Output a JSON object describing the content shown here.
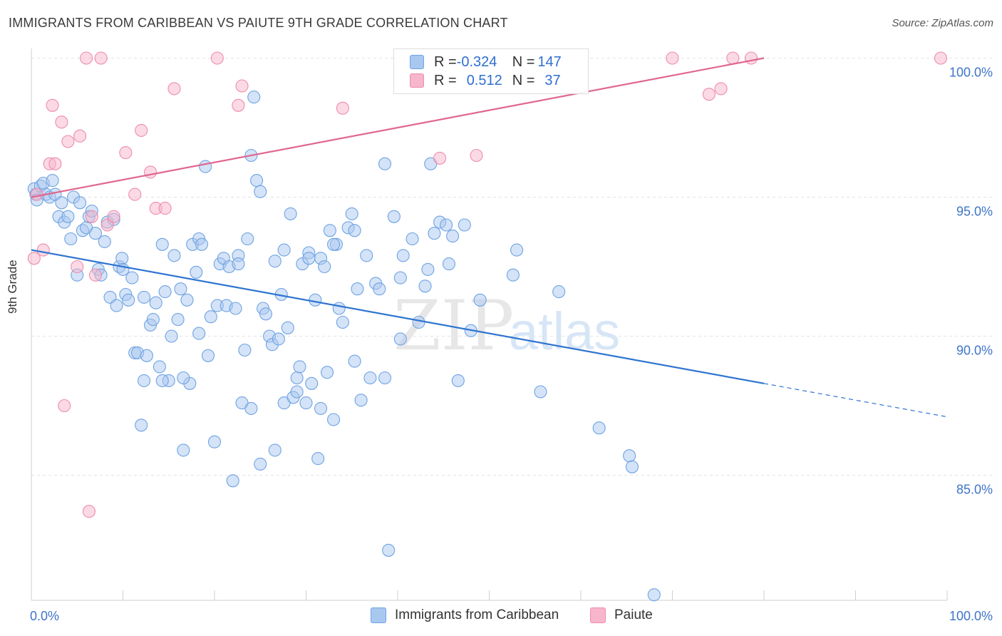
{
  "title": "IMMIGRANTS FROM CARIBBEAN VS PAIUTE 9TH GRADE CORRELATION CHART",
  "source": "Source: ZipAtlas.com",
  "watermark": {
    "zip": "ZIP",
    "atlas": "atlas"
  },
  "legend_top": {
    "rows": [
      {
        "r_label": "R = ",
        "r_value": "-0.324",
        "n_label": "N = ",
        "n_value": "147",
        "color": "#a9c8f0"
      },
      {
        "r_label": "R = ",
        "r_value": "0.512",
        "n_label": "N = ",
        "n_value": "37",
        "color": "#f7b6cb"
      }
    ]
  },
  "chart_data": {
    "type": "scatter",
    "title": "IMMIGRANTS FROM CARIBBEAN VS PAIUTE 9TH GRADE CORRELATION CHART",
    "xlabel": "",
    "ylabel": "9th Grade",
    "xlim": [
      0,
      100
    ],
    "ylim": [
      80.5,
      100.5
    ],
    "x_tick_labels": [
      "0.0%",
      "100.0%"
    ],
    "y_ticks": [
      85,
      90,
      95,
      100
    ],
    "y_tick_labels": [
      "85.0%",
      "90.0%",
      "95.0%",
      "100.0%"
    ],
    "grid": true,
    "legend_position": "bottom",
    "series": [
      {
        "name": "Immigrants from Caribbean",
        "color": "#6fa3e3",
        "fill": "#a9c8f0",
        "trend": {
          "x0": 0,
          "y0": 93.1,
          "x1": 80,
          "y1": 88.3,
          "dash_x1": 100,
          "dash_y1": 87.1
        },
        "points": [
          [
            0.3,
            95.3
          ],
          [
            0.5,
            95.1
          ],
          [
            0.6,
            94.9
          ],
          [
            1.0,
            95.4
          ],
          [
            1.3,
            95.5
          ],
          [
            1.6,
            95.1
          ],
          [
            2.0,
            95.0
          ],
          [
            2.3,
            95.6
          ],
          [
            2.6,
            95.1
          ],
          [
            3.0,
            94.3
          ],
          [
            3.3,
            94.8
          ],
          [
            3.6,
            94.1
          ],
          [
            4.0,
            94.3
          ],
          [
            4.3,
            93.5
          ],
          [
            4.6,
            95.0
          ],
          [
            5.0,
            92.2
          ],
          [
            5.3,
            94.8
          ],
          [
            5.6,
            93.8
          ],
          [
            6.0,
            93.9
          ],
          [
            6.3,
            94.3
          ],
          [
            6.6,
            94.5
          ],
          [
            7.0,
            93.7
          ],
          [
            7.3,
            92.4
          ],
          [
            7.6,
            92.2
          ],
          [
            8.0,
            93.4
          ],
          [
            8.3,
            94.1
          ],
          [
            8.6,
            91.4
          ],
          [
            9.0,
            94.2
          ],
          [
            9.3,
            91.1
          ],
          [
            9.6,
            92.5
          ],
          [
            9.9,
            92.8
          ],
          [
            10.3,
            91.5
          ],
          [
            10.6,
            91.3
          ],
          [
            11.0,
            92.1
          ],
          [
            11.3,
            89.4
          ],
          [
            11.6,
            89.4
          ],
          [
            12.0,
            86.8
          ],
          [
            12.3,
            88.4
          ],
          [
            12.6,
            89.3
          ],
          [
            13.0,
            90.4
          ],
          [
            13.3,
            90.6
          ],
          [
            13.6,
            91.2
          ],
          [
            14.0,
            88.9
          ],
          [
            14.3,
            93.3
          ],
          [
            14.6,
            91.6
          ],
          [
            15.0,
            88.4
          ],
          [
            15.3,
            90.0
          ],
          [
            15.6,
            92.9
          ],
          [
            16.0,
            90.6
          ],
          [
            16.3,
            91.7
          ],
          [
            16.6,
            85.9
          ],
          [
            17.0,
            91.3
          ],
          [
            17.3,
            88.3
          ],
          [
            17.6,
            93.3
          ],
          [
            18.0,
            92.3
          ],
          [
            18.3,
            93.5
          ],
          [
            18.6,
            93.3
          ],
          [
            19.0,
            96.1
          ],
          [
            19.3,
            89.3
          ],
          [
            19.6,
            90.7
          ],
          [
            20.0,
            86.2
          ],
          [
            20.3,
            91.1
          ],
          [
            20.6,
            92.6
          ],
          [
            21.0,
            92.8
          ],
          [
            21.3,
            91.1
          ],
          [
            21.6,
            92.5
          ],
          [
            22.0,
            84.8
          ],
          [
            22.3,
            91.0
          ],
          [
            22.6,
            92.9
          ],
          [
            23.0,
            87.6
          ],
          [
            23.3,
            89.5
          ],
          [
            23.6,
            93.5
          ],
          [
            24.0,
            87.4
          ],
          [
            24.3,
            98.6
          ],
          [
            24.6,
            95.6
          ],
          [
            25.0,
            85.4
          ],
          [
            25.3,
            91.0
          ],
          [
            25.6,
            90.8
          ],
          [
            26.0,
            90.0
          ],
          [
            26.3,
            89.7
          ],
          [
            26.6,
            92.7
          ],
          [
            27.0,
            89.9
          ],
          [
            27.3,
            91.5
          ],
          [
            27.6,
            87.6
          ],
          [
            28.0,
            90.3
          ],
          [
            28.3,
            94.4
          ],
          [
            28.6,
            87.8
          ],
          [
            29.0,
            88.5
          ],
          [
            29.3,
            88.9
          ],
          [
            29.6,
            92.6
          ],
          [
            30.0,
            87.6
          ],
          [
            30.3,
            93.0
          ],
          [
            30.6,
            88.3
          ],
          [
            31.0,
            91.3
          ],
          [
            31.3,
            85.6
          ],
          [
            31.6,
            92.8
          ],
          [
            32.0,
            92.5
          ],
          [
            32.3,
            88.7
          ],
          [
            32.6,
            93.8
          ],
          [
            33.0,
            87.0
          ],
          [
            33.3,
            93.3
          ],
          [
            33.6,
            91.0
          ],
          [
            34.0,
            90.5
          ],
          [
            34.6,
            93.9
          ],
          [
            35.0,
            94.4
          ],
          [
            35.3,
            89.1
          ],
          [
            35.6,
            91.7
          ],
          [
            36.0,
            87.7
          ],
          [
            36.6,
            92.9
          ],
          [
            37.0,
            88.5
          ],
          [
            37.6,
            91.9
          ],
          [
            38.0,
            91.7
          ],
          [
            38.6,
            96.2
          ],
          [
            39.0,
            82.3
          ],
          [
            39.6,
            94.3
          ],
          [
            40.3,
            92.1
          ],
          [
            40.6,
            92.9
          ],
          [
            41.6,
            93.5
          ],
          [
            42.3,
            90.5
          ],
          [
            43.0,
            91.8
          ],
          [
            43.3,
            92.4
          ],
          [
            44.0,
            93.7
          ],
          [
            44.6,
            94.1
          ],
          [
            45.6,
            92.6
          ],
          [
            46.0,
            93.6
          ],
          [
            46.6,
            88.4
          ],
          [
            47.3,
            94.0
          ],
          [
            48.0,
            90.2
          ],
          [
            49.0,
            91.3
          ],
          [
            50.0,
            99.9
          ],
          [
            52.6,
            92.2
          ],
          [
            53.0,
            93.1
          ],
          [
            55.6,
            88.0
          ],
          [
            57.6,
            91.6
          ],
          [
            62.0,
            86.7
          ],
          [
            65.3,
            85.7
          ],
          [
            65.6,
            85.3
          ],
          [
            68.0,
            80.7
          ],
          [
            22.6,
            92.6
          ],
          [
            25.0,
            95.2
          ],
          [
            24.0,
            96.5
          ],
          [
            27.6,
            93.1
          ],
          [
            30.3,
            92.8
          ],
          [
            33.0,
            93.3
          ],
          [
            35.3,
            93.8
          ],
          [
            10.0,
            92.4
          ],
          [
            14.3,
            88.4
          ],
          [
            18.3,
            90.1
          ],
          [
            38.6,
            88.5
          ],
          [
            40.3,
            89.9
          ],
          [
            43.6,
            96.2
          ],
          [
            45.3,
            94.0
          ],
          [
            16.6,
            88.5
          ],
          [
            12.3,
            91.4
          ],
          [
            26.6,
            85.9
          ],
          [
            29.0,
            88.0
          ],
          [
            31.6,
            87.4
          ]
        ]
      },
      {
        "name": "Paiute",
        "color": "#ee8cab",
        "fill": "#f7b6cb",
        "trend": {
          "x0": 0,
          "y0": 95.0,
          "x1": 80,
          "y1": 100.0
        },
        "points": [
          [
            0.3,
            92.8
          ],
          [
            0.6,
            95.1
          ],
          [
            1.3,
            93.1
          ],
          [
            2.0,
            96.2
          ],
          [
            2.3,
            98.3
          ],
          [
            2.6,
            96.2
          ],
          [
            3.3,
            97.7
          ],
          [
            3.6,
            87.5
          ],
          [
            4.0,
            97.0
          ],
          [
            5.0,
            92.5
          ],
          [
            5.3,
            97.2
          ],
          [
            6.0,
            100.0
          ],
          [
            6.3,
            83.7
          ],
          [
            6.6,
            94.3
          ],
          [
            7.0,
            92.2
          ],
          [
            7.6,
            100.0
          ],
          [
            8.3,
            94.0
          ],
          [
            9.0,
            94.3
          ],
          [
            10.3,
            96.6
          ],
          [
            11.3,
            95.1
          ],
          [
            12.0,
            97.4
          ],
          [
            13.0,
            95.9
          ],
          [
            13.6,
            94.6
          ],
          [
            14.6,
            94.6
          ],
          [
            15.6,
            98.9
          ],
          [
            20.3,
            100.0
          ],
          [
            22.6,
            98.3
          ],
          [
            23.0,
            99.0
          ],
          [
            34.0,
            98.2
          ],
          [
            44.6,
            96.4
          ],
          [
            48.6,
            96.5
          ],
          [
            70.0,
            100.0
          ],
          [
            74.0,
            98.7
          ],
          [
            75.3,
            98.9
          ],
          [
            76.6,
            100.0
          ],
          [
            78.6,
            100.0
          ],
          [
            99.3,
            100.0
          ]
        ]
      }
    ]
  }
}
